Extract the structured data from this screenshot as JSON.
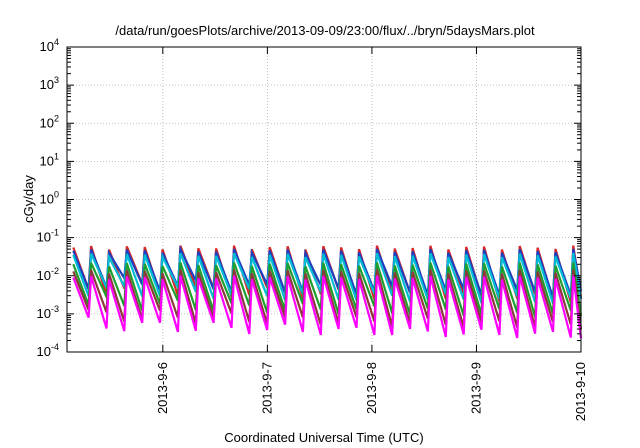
{
  "chart_data": {
    "type": "line",
    "title": "/data/run/goesPlots/archive/2013-09-09/23:00/flux/../bryn/5daysMars.plot",
    "xlabel": "Coordinated Universal Time (UTC)",
    "ylabel": "cGy/day",
    "x_range": [
      "2013-09-05T02:00",
      "2013-09-10T00:00"
    ],
    "x_ticks": [
      "2013-9-6",
      "2013-9-7",
      "2013-9-8",
      "2013-9-9",
      "2013-9-10"
    ],
    "x_tick_dates": [
      "2013-09-06",
      "2013-09-07",
      "2013-09-08",
      "2013-09-09",
      "2013-09-10"
    ],
    "y_scale": "log",
    "ylim": [
      0.0001,
      10000
    ],
    "y_ticks": [
      {
        "value": 0.0001,
        "base": "10",
        "exp": "-4"
      },
      {
        "value": 0.001,
        "base": "10",
        "exp": "-3"
      },
      {
        "value": 0.01,
        "base": "10",
        "exp": "-2"
      },
      {
        "value": 0.1,
        "base": "10",
        "exp": "-1"
      },
      {
        "value": 1,
        "base": "10",
        "exp": "0"
      },
      {
        "value": 10,
        "base": "10",
        "exp": "1"
      },
      {
        "value": 100,
        "base": "10",
        "exp": "2"
      },
      {
        "value": 1000,
        "base": "10",
        "exp": "3"
      },
      {
        "value": 10000,
        "base": "10",
        "exp": "4"
      }
    ],
    "grid": true,
    "legend": "none",
    "sawtooth_period_hours": 4.1,
    "series": [
      {
        "color": "#d62728",
        "peak": 0.055,
        "trough": 0.0045
      },
      {
        "color": "#1f3fbf",
        "peak": 0.045,
        "trough": 0.006
      },
      {
        "color": "#00bcd4",
        "peak": 0.035,
        "trough": 0.004
      },
      {
        "color": "#1e9e2e",
        "peak": 0.02,
        "trough": 0.0018
      },
      {
        "color": "#8b3a3a",
        "peak": 0.013,
        "trough": 0.0009
      },
      {
        "color": "#ff00ff",
        "peak": 0.009,
        "trough": 0.0005
      }
    ]
  }
}
